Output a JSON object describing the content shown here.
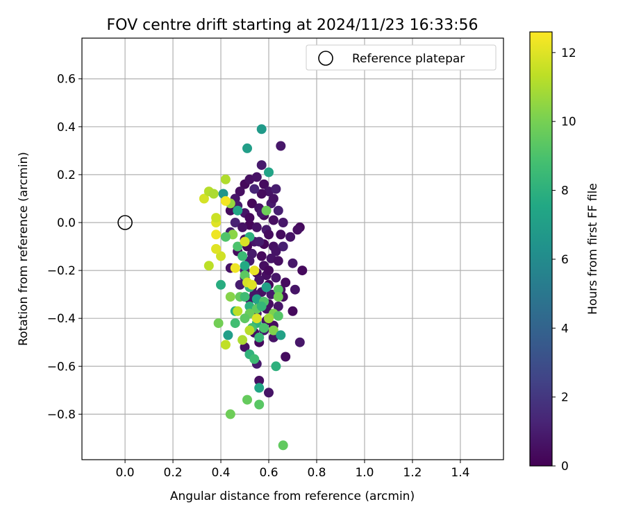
{
  "chart_data": {
    "type": "scatter",
    "title": "FOV centre drift starting at 2024/11/23 16:33:56",
    "xlabel": "Angular distance from reference (arcmin)",
    "ylabel": "Rotation from reference (arcmin)",
    "xlim": [
      -0.18,
      1.58
    ],
    "ylim": [
      -0.99,
      0.77
    ],
    "xticks": [
      "0.0",
      "0.2",
      "0.4",
      "0.6",
      "0.8",
      "1.0",
      "1.2",
      "1.4"
    ],
    "yticks": [
      "0.6",
      "0.4",
      "0.2",
      "0.0",
      "−0.2",
      "−0.4",
      "−0.6",
      "−0.8"
    ],
    "grid": true,
    "legend": {
      "position": "top-right",
      "entries": [
        "Reference platepar"
      ]
    },
    "reference_point": {
      "x": 0.0,
      "y": 0.0,
      "marker": "open-circle"
    },
    "colorbar": {
      "label": "Hours from first FF file",
      "range": [
        0,
        12.6
      ],
      "ticks": [
        "0",
        "2",
        "4",
        "6",
        "8",
        "10",
        "12"
      ],
      "colormap": "viridis"
    },
    "series": [
      {
        "marker": "filled-circle",
        "points": [
          [
            0.5,
            0.16,
            0.3
          ],
          [
            0.52,
            0.18,
            0.5
          ],
          [
            0.55,
            0.19,
            0.6
          ],
          [
            0.57,
            0.24,
            0.9
          ],
          [
            0.58,
            0.16,
            0.4
          ],
          [
            0.6,
            0.13,
            0.7
          ],
          [
            0.63,
            0.14,
            1.0
          ],
          [
            0.48,
            0.13,
            0.5
          ],
          [
            0.46,
            0.1,
            0.8
          ],
          [
            0.53,
            0.08,
            0.2
          ],
          [
            0.56,
            0.06,
            0.6
          ],
          [
            0.61,
            0.08,
            0.9
          ],
          [
            0.64,
            0.05,
            1.1
          ],
          [
            0.44,
            0.05,
            0.4
          ],
          [
            0.5,
            0.04,
            0.7
          ],
          [
            0.58,
            0.03,
            0.3
          ],
          [
            0.62,
            0.01,
            0.5
          ],
          [
            0.66,
            0.0,
            0.8
          ],
          [
            0.46,
            0.0,
            1.2
          ],
          [
            0.52,
            -0.01,
            0.2
          ],
          [
            0.55,
            -0.02,
            0.6
          ],
          [
            0.59,
            -0.03,
            0.9
          ],
          [
            0.65,
            -0.05,
            0.4
          ],
          [
            0.69,
            -0.06,
            0.7
          ],
          [
            0.73,
            -0.02,
            0.3
          ],
          [
            0.44,
            -0.04,
            1.0
          ],
          [
            0.5,
            -0.07,
            0.5
          ],
          [
            0.54,
            -0.08,
            0.8
          ],
          [
            0.58,
            -0.09,
            0.2
          ],
          [
            0.62,
            -0.1,
            0.6
          ],
          [
            0.66,
            -0.1,
            1.1
          ],
          [
            0.47,
            -0.12,
            0.4
          ],
          [
            0.53,
            -0.13,
            0.9
          ],
          [
            0.57,
            -0.14,
            0.3
          ],
          [
            0.61,
            -0.15,
            0.7
          ],
          [
            0.64,
            -0.16,
            0.5
          ],
          [
            0.7,
            -0.17,
            0.8
          ],
          [
            0.74,
            -0.2,
            0.3
          ],
          [
            0.44,
            -0.19,
            0.6
          ],
          [
            0.5,
            -0.2,
            0.9
          ],
          [
            0.55,
            -0.21,
            0.2
          ],
          [
            0.59,
            -0.22,
            0.5
          ],
          [
            0.63,
            -0.23,
            0.8
          ],
          [
            0.67,
            -0.25,
            0.4
          ],
          [
            0.71,
            -0.28,
            0.7
          ],
          [
            0.48,
            -0.26,
            1.0
          ],
          [
            0.53,
            -0.27,
            0.3
          ],
          [
            0.57,
            -0.29,
            0.6
          ],
          [
            0.61,
            -0.3,
            0.9
          ],
          [
            0.66,
            -0.31,
            0.4
          ],
          [
            0.52,
            -0.32,
            0.7
          ],
          [
            0.56,
            -0.33,
            0.2
          ],
          [
            0.6,
            -0.34,
            0.5
          ],
          [
            0.64,
            -0.35,
            0.8
          ],
          [
            0.7,
            -0.37,
            0.3
          ],
          [
            0.55,
            -0.38,
            1.0
          ],
          [
            0.59,
            -0.41,
            0.6
          ],
          [
            0.62,
            -0.43,
            0.4
          ],
          [
            0.58,
            -0.45,
            0.9
          ],
          [
            0.54,
            -0.46,
            0.5
          ],
          [
            0.62,
            -0.48,
            0.7
          ],
          [
            0.56,
            -0.5,
            0.3
          ],
          [
            0.73,
            -0.5,
            0.8
          ],
          [
            0.5,
            -0.52,
            0.6
          ],
          [
            0.67,
            -0.56,
            0.4
          ],
          [
            0.55,
            -0.59,
            0.9
          ],
          [
            0.56,
            -0.66,
            0.5
          ],
          [
            0.6,
            -0.71,
            0.7
          ],
          [
            0.65,
            0.32,
            0.8
          ],
          [
            0.72,
            -0.03,
            0.5
          ],
          [
            0.52,
            0.02,
            0.3
          ],
          [
            0.57,
            0.04,
            0.8
          ],
          [
            0.49,
            -0.02,
            0.6
          ],
          [
            0.6,
            -0.05,
            0.4
          ],
          [
            0.56,
            -0.08,
            1.0
          ],
          [
            0.51,
            -0.1,
            0.2
          ],
          [
            0.63,
            -0.12,
            0.7
          ],
          [
            0.58,
            -0.18,
            0.5
          ],
          [
            0.52,
            -0.16,
            0.9
          ],
          [
            0.6,
            -0.2,
            0.3
          ],
          [
            0.56,
            -0.24,
            0.7
          ],
          [
            0.65,
            -0.28,
            0.5
          ],
          [
            0.5,
            -0.23,
            1.1
          ],
          [
            0.57,
            0.12,
            0.4
          ],
          [
            0.54,
            0.14,
            1.3
          ],
          [
            0.62,
            0.1,
            0.6
          ],
          [
            0.47,
            0.07,
            0.9
          ],
          [
            0.6,
            -0.26,
            0.2
          ],
          [
            0.54,
            -0.3,
            0.8
          ],
          [
            0.59,
            -0.36,
            0.6
          ],
          [
            0.57,
            0.39,
            6.8
          ],
          [
            0.51,
            0.31,
            7.0
          ],
          [
            0.6,
            0.21,
            7.3
          ],
          [
            0.41,
            0.12,
            6.5
          ],
          [
            0.47,
            0.05,
            7.4
          ],
          [
            0.52,
            -0.06,
            8.0
          ],
          [
            0.59,
            0.05,
            9.8
          ],
          [
            0.47,
            -0.1,
            9.0
          ],
          [
            0.49,
            -0.14,
            8.5
          ],
          [
            0.5,
            -0.18,
            7.6
          ],
          [
            0.5,
            -0.22,
            9.4
          ],
          [
            0.52,
            -0.27,
            8.2
          ],
          [
            0.59,
            -0.27,
            7.1
          ],
          [
            0.64,
            -0.28,
            9.3
          ],
          [
            0.4,
            -0.26,
            7.8
          ],
          [
            0.48,
            -0.31,
            9.6
          ],
          [
            0.5,
            -0.31,
            8.6
          ],
          [
            0.55,
            -0.32,
            7.4
          ],
          [
            0.58,
            -0.33,
            9.1
          ],
          [
            0.64,
            -0.31,
            9.9
          ],
          [
            0.52,
            -0.35,
            8.0
          ],
          [
            0.55,
            -0.36,
            9.5
          ],
          [
            0.57,
            -0.35,
            8.3
          ],
          [
            0.52,
            -0.38,
            9.7
          ],
          [
            0.46,
            -0.37,
            7.9
          ],
          [
            0.46,
            -0.42,
            8.7
          ],
          [
            0.5,
            -0.4,
            9.4
          ],
          [
            0.55,
            -0.42,
            8.1
          ],
          [
            0.62,
            -0.38,
            10.1
          ],
          [
            0.64,
            -0.39,
            9.2
          ],
          [
            0.53,
            -0.44,
            8.8
          ],
          [
            0.58,
            -0.44,
            9.0
          ],
          [
            0.62,
            -0.45,
            10.2
          ],
          [
            0.65,
            -0.47,
            7.2
          ],
          [
            0.43,
            -0.47,
            7.0
          ],
          [
            0.56,
            -0.48,
            8.4
          ],
          [
            0.52,
            -0.55,
            8.1
          ],
          [
            0.54,
            -0.57,
            8.6
          ],
          [
            0.63,
            -0.6,
            8.0
          ],
          [
            0.56,
            -0.69,
            7.4
          ],
          [
            0.51,
            -0.74,
            9.6
          ],
          [
            0.56,
            -0.76,
            9.3
          ],
          [
            0.44,
            -0.8,
            9.8
          ],
          [
            0.66,
            -0.93,
            9.5
          ],
          [
            0.39,
            -0.42,
            9.9
          ],
          [
            0.44,
            -0.31,
            10.3
          ],
          [
            0.45,
            -0.05,
            10.4
          ],
          [
            0.44,
            0.08,
            10.6
          ],
          [
            0.42,
            -0.06,
            9.1
          ],
          [
            0.55,
            -0.4,
            11.9
          ],
          [
            0.6,
            -0.4,
            10.8
          ],
          [
            0.52,
            -0.45,
            11.2
          ],
          [
            0.49,
            -0.49,
            11.0
          ],
          [
            0.42,
            -0.51,
            11.4
          ],
          [
            0.47,
            -0.37,
            11.3
          ],
          [
            0.51,
            -0.25,
            11.8
          ],
          [
            0.53,
            -0.26,
            12.0
          ],
          [
            0.54,
            -0.2,
            12.2
          ],
          [
            0.5,
            -0.08,
            11.9
          ],
          [
            0.46,
            -0.19,
            12.3
          ],
          [
            0.4,
            -0.14,
            11.7
          ],
          [
            0.38,
            -0.11,
            12.5
          ],
          [
            0.38,
            -0.05,
            12.3
          ],
          [
            0.38,
            0.0,
            12.0
          ],
          [
            0.38,
            0.02,
            11.6
          ],
          [
            0.35,
            -0.18,
            11.3
          ],
          [
            0.33,
            0.1,
            11.8
          ],
          [
            0.35,
            0.13,
            11.2
          ],
          [
            0.37,
            0.12,
            11.0
          ],
          [
            0.42,
            0.18,
            11.1
          ],
          [
            0.42,
            0.09,
            12.4
          ],
          [
            0.38,
            -0.11,
            12.0
          ]
        ]
      }
    ]
  }
}
